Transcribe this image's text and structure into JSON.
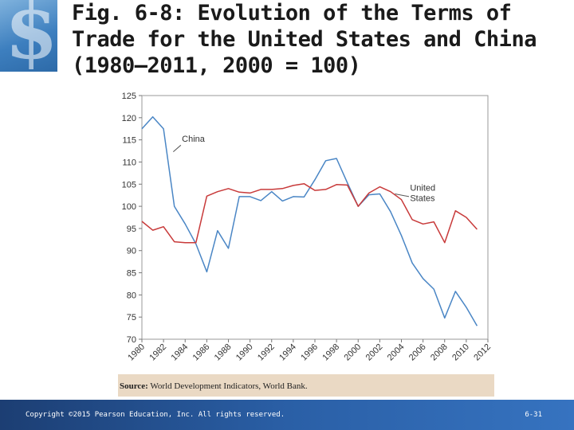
{
  "slide": {
    "title": "Fig. 6-8: Evolution of the Terms of Trade for the United States and China (1980–2011, 2000 = 100)",
    "source_label": "Source:",
    "source_text": "World Development Indicators, World Bank.",
    "copyright": "Copyright ©2015 Pearson Education, Inc. All rights reserved.",
    "page_number": "6-31"
  },
  "chart_data": {
    "type": "line",
    "title": "",
    "xlabel": "",
    "ylabel": "",
    "xlim": [
      1980,
      2012
    ],
    "ylim": [
      70,
      125
    ],
    "x_ticks": [
      "1980",
      "1982",
      "1984",
      "1986",
      "1988",
      "1990",
      "1992",
      "1994",
      "1996",
      "1998",
      "2000",
      "2002",
      "2004",
      "2006",
      "2008",
      "2010",
      "2012"
    ],
    "y_ticks": [
      "70",
      "75",
      "80",
      "85",
      "90",
      "95",
      "100",
      "105",
      "110",
      "115",
      "120",
      "125"
    ],
    "grid": false,
    "series": [
      {
        "name": "China",
        "color": "#4a86c5",
        "x": [
          1980,
          1981,
          1982,
          1983,
          1984,
          1985,
          1986,
          1987,
          1988,
          1989,
          1990,
          1991,
          1992,
          1993,
          1994,
          1995,
          1996,
          1997,
          1998,
          1999,
          2000,
          2001,
          2002,
          2003,
          2004,
          2005,
          2006,
          2007,
          2008,
          2009,
          2010,
          2011
        ],
        "y": [
          117.5,
          120.2,
          117.5,
          100.0,
          96.0,
          91.5,
          85.2,
          94.5,
          90.5,
          102.2,
          102.2,
          101.3,
          103.3,
          101.2,
          102.2,
          102.1,
          106.0,
          110.3,
          110.8,
          105.3,
          100.0,
          102.6,
          102.8,
          98.8,
          93.4,
          87.2,
          83.7,
          81.3,
          74.8,
          80.8,
          77.2,
          73.0
        ]
      },
      {
        "name": "United States",
        "color": "#c83a3a",
        "x": [
          1980,
          1981,
          1982,
          1983,
          1984,
          1985,
          1986,
          1987,
          1988,
          1989,
          1990,
          1991,
          1992,
          1993,
          1994,
          1995,
          1996,
          1997,
          1998,
          1999,
          2000,
          2001,
          2002,
          2003,
          2004,
          2005,
          2006,
          2007,
          2008,
          2009,
          2010,
          2011
        ],
        "y": [
          96.6,
          94.6,
          95.4,
          92.0,
          91.8,
          91.8,
          102.3,
          103.3,
          104.0,
          103.2,
          103.0,
          103.8,
          103.8,
          104.0,
          104.7,
          105.1,
          103.6,
          103.8,
          104.9,
          104.8,
          100.0,
          103.0,
          104.4,
          103.3,
          101.5,
          97.0,
          96.0,
          96.5,
          91.8,
          99.0,
          97.5,
          94.8
        ]
      }
    ],
    "annotations": [
      {
        "text_lines": [
          "China"
        ],
        "series": "China"
      },
      {
        "text_lines": [
          "United",
          "States"
        ],
        "series": "United States"
      }
    ]
  }
}
